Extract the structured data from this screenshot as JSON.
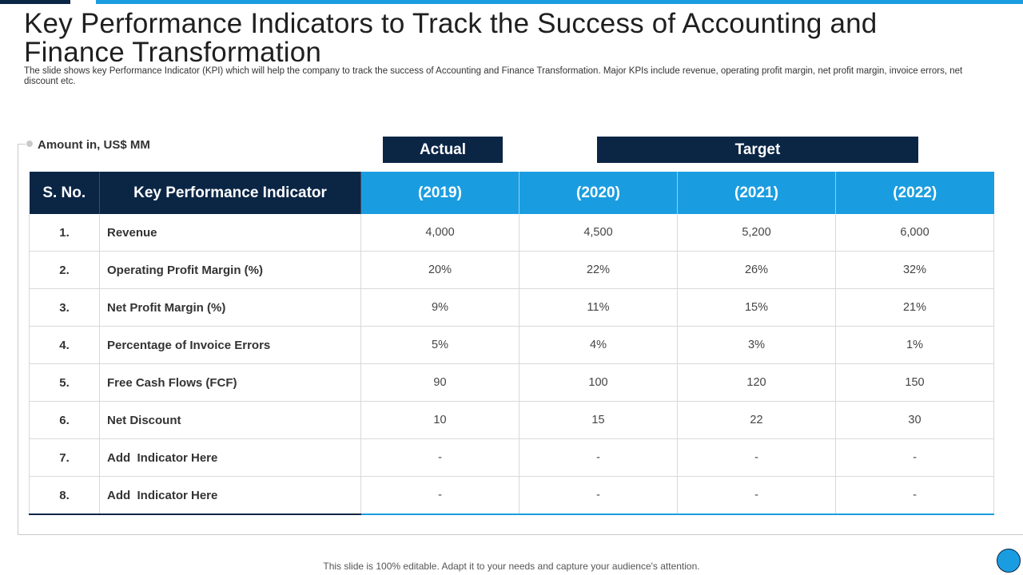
{
  "title": "Key Performance Indicators to Track the Success of Accounting and Finance Transformation",
  "subtitle": "The slide shows key Performance Indicator (KPI) which will help the company to track the success of Accounting and Finance Transformation. Major KPIs include revenue, operating profit margin, net profit margin, invoice errors, net discount etc.",
  "amount_label": "Amount in, US$ MM",
  "groups": {
    "actual": "Actual",
    "target": "Target"
  },
  "table": {
    "headers": [
      "S. No.",
      "Key Performance Indicator",
      "(2019)",
      "(2020)",
      "(2021)",
      "(2022)"
    ],
    "rows": [
      {
        "sno": "1.",
        "name": "Revenue",
        "values": [
          "4,000",
          "4,500",
          "5,200",
          "6,000"
        ]
      },
      {
        "sno": "2.",
        "name": "Operating Profit Margin (%)",
        "values": [
          "20%",
          "22%",
          "26%",
          "32%"
        ]
      },
      {
        "sno": "3.",
        "name": "Net Profit Margin (%)",
        "values": [
          "9%",
          "11%",
          "15%",
          "21%"
        ]
      },
      {
        "sno": "4.",
        "name": "Percentage of Invoice Errors",
        "values": [
          "5%",
          "4%",
          "3%",
          "1%"
        ]
      },
      {
        "sno": "5.",
        "name": "Free Cash Flows (FCF)",
        "values": [
          "90",
          "100",
          "120",
          "150"
        ]
      },
      {
        "sno": "6.",
        "name": "Net Discount",
        "values": [
          "10",
          "15",
          "22",
          "30"
        ]
      },
      {
        "sno": "7.",
        "name": "Add  Indicator Here",
        "values": [
          "-",
          "-",
          "-",
          "-"
        ]
      },
      {
        "sno": "8.",
        "name": "Add  Indicator Here",
        "values": [
          "-",
          "-",
          "-",
          "-"
        ]
      }
    ]
  },
  "footer": "This slide is 100% editable. Adapt it to your needs and capture your audience's attention.",
  "colors": {
    "navy": "#0b2545",
    "blue": "#1a9de0"
  }
}
